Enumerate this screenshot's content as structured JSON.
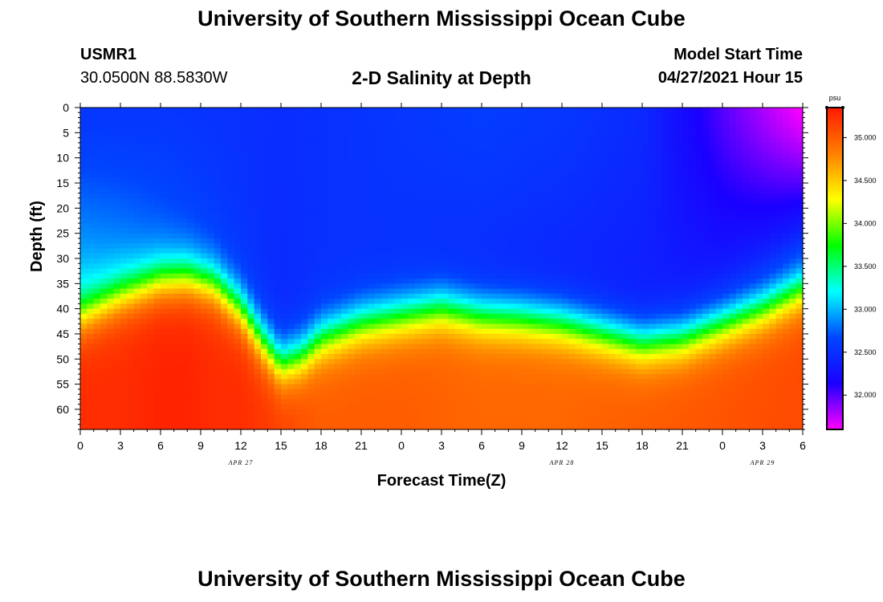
{
  "header": {
    "top_title": "University of Southern Mississippi Ocean Cube",
    "station": "USMR1",
    "coordinates": "30.0500N  88.5830W",
    "subtitle": "2-D Salinity at Depth",
    "model_start_label": "Model Start Time",
    "model_start_value": "04/27/2021 Hour 15"
  },
  "footer": {
    "bottom_title": "University of Southern Mississippi Ocean Cube"
  },
  "chart_data": {
    "type": "heatmap",
    "title": "2-D Salinity at Depth",
    "xlabel": "Forecast Time(Z)",
    "ylabel": "Depth (ft)",
    "x_range_hours": [
      0,
      54
    ],
    "y_range_ft": [
      0,
      64
    ],
    "x_tick_labels": [
      "0",
      "3",
      "6",
      "9",
      "12",
      "15",
      "18",
      "21",
      "0",
      "3",
      "6",
      "9",
      "12",
      "15",
      "18",
      "21",
      "0",
      "3",
      "6"
    ],
    "y_tick_labels": [
      "0",
      "5",
      "10",
      "15",
      "20",
      "25",
      "30",
      "35",
      "40",
      "45",
      "50",
      "55",
      "60"
    ],
    "y_tick_values": [
      0,
      5,
      10,
      15,
      20,
      25,
      30,
      35,
      40,
      45,
      50,
      55,
      60
    ],
    "date_labels": [
      {
        "label": "APR 27",
        "x_hour": 12
      },
      {
        "label": "APR 28",
        "x_hour": 36
      },
      {
        "label": "APR 29",
        "x_hour": 51
      }
    ],
    "colorbar": {
      "unit": "psu",
      "min": 31.6,
      "max": 35.35,
      "tick_labels": [
        "35.000",
        "34.500",
        "34.000",
        "33.500",
        "33.000",
        "32.500",
        "32.000"
      ],
      "tick_values": [
        35.0,
        34.5,
        34.0,
        33.5,
        33.0,
        32.5,
        32.0
      ],
      "colors": [
        "#ff00ff",
        "#1a00ff",
        "#0046ff",
        "#00ffff",
        "#00ff00",
        "#ffff00",
        "#ff8000",
        "#ff1a00"
      ]
    },
    "halocline_depth_ft": {
      "hours": [
        0,
        3,
        6,
        8,
        10,
        12,
        13.5,
        15,
        16.5,
        18,
        21,
        24,
        27,
        30,
        33,
        36,
        39,
        42,
        45,
        48,
        51,
        54
      ],
      "depth": [
        41,
        37,
        34,
        33.5,
        35,
        40,
        46,
        51,
        49.5,
        46,
        43,
        41.5,
        40,
        41.5,
        42,
        43,
        45,
        47,
        46,
        43,
        40,
        36
      ]
    },
    "surface_layer": {
      "hours": [
        0,
        6,
        12,
        15,
        18,
        24,
        30,
        36,
        42,
        48,
        54
      ],
      "s_top": [
        32.55,
        32.55,
        32.5,
        32.48,
        32.5,
        32.55,
        32.6,
        32.55,
        32.45,
        32.0,
        31.6
      ],
      "s_bottom": [
        33.0,
        32.75,
        32.55,
        32.45,
        32.5,
        32.5,
        32.45,
        32.4,
        32.35,
        32.35,
        32.5
      ]
    },
    "deep_max_salinity": {
      "hours": [
        0,
        3,
        6,
        8,
        10,
        12,
        15,
        18,
        24,
        30,
        36,
        42,
        48,
        54
      ],
      "value": [
        35.25,
        35.25,
        35.3,
        35.3,
        35.25,
        35.25,
        35.15,
        35.0,
        35.0,
        34.95,
        34.95,
        35.0,
        35.05,
        35.1
      ]
    }
  }
}
